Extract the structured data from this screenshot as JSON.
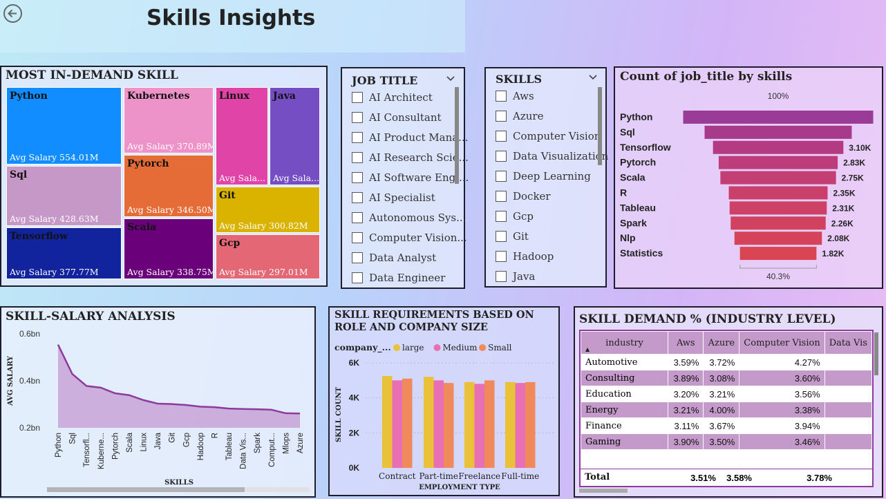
{
  "page": {
    "title": "Skills Insights"
  },
  "treemap": {
    "title": "MOST IN-DEMAND SKILL",
    "tiles": [
      {
        "name": "Python",
        "salary": "Avg Salary 554.01M",
        "color": "#118dff"
      },
      {
        "name": "Sql",
        "salary": "Avg Salary 428.63M",
        "color": "#c598c8"
      },
      {
        "name": "Tensorflow",
        "salary": "Avg Salary 377.77M",
        "color": "#12239e"
      },
      {
        "name": "Kubernetes",
        "salary": "Avg Salary 370.89M",
        "color": "#ee93c9"
      },
      {
        "name": "Pytorch",
        "salary": "Avg Salary 346.50M",
        "color": "#e66c37"
      },
      {
        "name": "Scala",
        "salary": "Avg Salary 338.75M",
        "color": "#6b007b"
      },
      {
        "name": "Linux",
        "salary": "Avg Sala...",
        "color": "#e044a7"
      },
      {
        "name": "Java",
        "salary": "Avg Sala...",
        "color": "#744ec2"
      },
      {
        "name": "Git",
        "salary": "Avg Salary 300.82M",
        "color": "#d9b300"
      },
      {
        "name": "Gcp",
        "salary": "Avg Salary 297.01M",
        "color": "#e36774"
      }
    ]
  },
  "job_slicer": {
    "title": "JOB TITLE",
    "items": [
      "AI Architect",
      "AI Consultant",
      "AI Product Mana...",
      "AI Research Scie...",
      "AI Software Engi...",
      "AI Specialist",
      "Autonomous Sys...",
      "Computer Vision...",
      "Data Analyst",
      "Data Engineer"
    ]
  },
  "skill_slicer": {
    "title": "SKILLS",
    "items": [
      "Aws",
      "Azure",
      "Computer Vision",
      "Data Visualization",
      "Deep Learning",
      "Docker",
      "Gcp",
      "Git",
      "Hadoop",
      "Java"
    ]
  },
  "funnel": {
    "title": "Count of job_title by skills",
    "top_label": "100%",
    "bottom_label": "40.3%",
    "colors": [
      "#9b3b98",
      "#a83a8c",
      "#b43b82",
      "#bd3d7a",
      "#c33f73",
      "#c9406b",
      "#cd4166",
      "#d14260",
      "#d5435a",
      "#d94552"
    ]
  },
  "chart_data": [
    {
      "type": "bar",
      "title": "Count of job_title by skills",
      "categories": [
        "Python",
        "Sql",
        "Tensorflow",
        "Pytorch",
        "Scala",
        "R",
        "Tableau",
        "Spark",
        "Nlp",
        "Statistics"
      ],
      "values": [
        4520,
        3500,
        3100,
        2830,
        2750,
        2350,
        2310,
        2260,
        2080,
        1820
      ],
      "labels": [
        "",
        "",
        "3.10K",
        "2.83K",
        "2.75K",
        "2.35K",
        "2.31K",
        "2.26K",
        "2.08K",
        "1.82K"
      ]
    },
    {
      "type": "area",
      "title": "SKILL-SALARY ANALYSIS",
      "xlabel": "SKILLS",
      "ylabel": "AVG SALARY",
      "x": [
        "Python",
        "Sql",
        "Tensorfl...",
        "Kuberne...",
        "Pytorch",
        "Scala",
        "Linux",
        "Java",
        "Git",
        "Gcp",
        "Hadoop",
        "R",
        "Tableau",
        "Data Vis...",
        "Spark",
        "Comput...",
        "Mlops",
        "Azure"
      ],
      "y": [
        0.554,
        0.429,
        0.378,
        0.371,
        0.347,
        0.339,
        0.318,
        0.303,
        0.301,
        0.297,
        0.29,
        0.288,
        0.282,
        0.28,
        0.279,
        0.277,
        0.262,
        0.261
      ],
      "yticks": [
        "0.6bn",
        "0.4bn",
        "0.2bn"
      ],
      "ylim": [
        0.2,
        0.6
      ],
      "color": "#8b3a9e"
    },
    {
      "type": "bar",
      "title": "SKILL REQUIREMENTS BASED ON ROLE AND COMPANY SIZE",
      "legend_title": "company_...",
      "xlabel": "EMPLOYMENT TYPE",
      "ylabel": "SKILL COUNT",
      "categories": [
        "Contract",
        "Part-time",
        "Freelance",
        "Full-time"
      ],
      "yticks": [
        "6K",
        "4K",
        "2K",
        "0K"
      ],
      "ylim": [
        0,
        6000
      ],
      "series": [
        {
          "name": "large",
          "color": "#e9c23a",
          "values": [
            5250,
            5200,
            4900,
            4900
          ]
        },
        {
          "name": "Medium",
          "color": "#e96fb4",
          "values": [
            5000,
            5000,
            4800,
            4850
          ]
        },
        {
          "name": "Small",
          "color": "#f08a5d",
          "values": [
            5100,
            4850,
            5000,
            4900
          ]
        }
      ]
    }
  ],
  "matrix": {
    "title": "SKILL DEMAND % (INDUSTRY LEVEL)",
    "headers": [
      "industry",
      "Aws",
      "Azure",
      "Computer Vision",
      "Data Vis"
    ],
    "rows": [
      [
        "Automotive",
        "3.59%",
        "3.72%",
        "4.27%",
        ""
      ],
      [
        "Consulting",
        "3.89%",
        "3.08%",
        "3.60%",
        ""
      ],
      [
        "Education",
        "3.20%",
        "3.21%",
        "3.56%",
        ""
      ],
      [
        "Energy",
        "3.21%",
        "4.00%",
        "3.38%",
        ""
      ],
      [
        "Finance",
        "3.11%",
        "3.67%",
        "3.94%",
        ""
      ],
      [
        "Gaming",
        "3.90%",
        "3.50%",
        "3.46%",
        ""
      ]
    ],
    "total": [
      "Total",
      "3.51%",
      "3.58%",
      "3.78%",
      ""
    ]
  }
}
